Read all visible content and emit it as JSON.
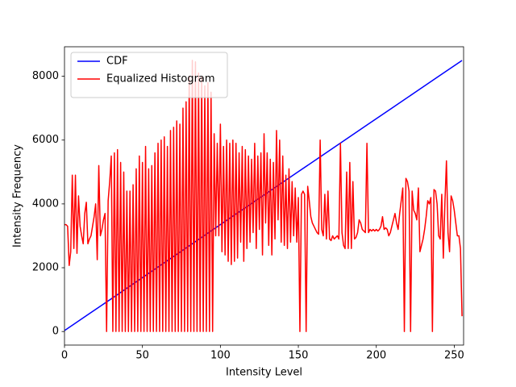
{
  "chart_data": {
    "type": "line",
    "xlabel": "Intensity Level",
    "ylabel": "Intensity Frequency",
    "xlim": [
      0,
      256
    ],
    "ylim": [
      -425,
      8925
    ],
    "xticks": [
      0,
      50,
      100,
      150,
      200,
      250
    ],
    "yticks": [
      0,
      2000,
      4000,
      6000,
      8000
    ],
    "legend": "upper-left",
    "grid": false,
    "x": [
      0,
      1,
      2,
      3,
      4,
      5,
      6,
      7,
      8,
      9,
      10,
      11,
      12,
      13,
      14,
      15,
      16,
      17,
      18,
      19,
      20,
      21,
      22,
      23,
      24,
      25,
      26,
      27,
      28,
      29,
      30,
      31,
      32,
      33,
      34,
      35,
      36,
      37,
      38,
      39,
      40,
      41,
      42,
      43,
      44,
      45,
      46,
      47,
      48,
      49,
      50,
      51,
      52,
      53,
      54,
      55,
      56,
      57,
      58,
      59,
      60,
      61,
      62,
      63,
      64,
      65,
      66,
      67,
      68,
      69,
      70,
      71,
      72,
      73,
      74,
      75,
      76,
      77,
      78,
      79,
      80,
      81,
      82,
      83,
      84,
      85,
      86,
      87,
      88,
      89,
      90,
      91,
      92,
      93,
      94,
      95,
      96,
      97,
      98,
      99,
      100,
      101,
      102,
      103,
      104,
      105,
      106,
      107,
      108,
      109,
      110,
      111,
      112,
      113,
      114,
      115,
      116,
      117,
      118,
      119,
      120,
      121,
      122,
      123,
      124,
      125,
      126,
      127,
      128,
      129,
      130,
      131,
      132,
      133,
      134,
      135,
      136,
      137,
      138,
      139,
      140,
      141,
      142,
      143,
      144,
      145,
      146,
      147,
      148,
      149,
      150,
      151,
      152,
      153,
      154,
      155,
      156,
      157,
      158,
      159,
      160,
      161,
      162,
      163,
      164,
      165,
      166,
      167,
      168,
      169,
      170,
      171,
      172,
      173,
      174,
      175,
      176,
      177,
      178,
      179,
      180,
      181,
      182,
      183,
      184,
      185,
      186,
      187,
      188,
      189,
      190,
      191,
      192,
      193,
      194,
      195,
      196,
      197,
      198,
      199,
      200,
      201,
      202,
      203,
      204,
      205,
      206,
      207,
      208,
      209,
      210,
      211,
      212,
      213,
      214,
      215,
      216,
      217,
      218,
      219,
      220,
      221,
      222,
      223,
      224,
      225,
      226,
      227,
      228,
      229,
      230,
      231,
      232,
      233,
      234,
      235,
      236,
      237,
      238,
      239,
      240,
      241,
      242,
      243,
      244,
      245,
      246,
      247,
      248,
      249,
      250,
      251,
      252,
      253,
      254,
      255
    ],
    "series": [
      {
        "name": "CDF",
        "color": "#0000ff",
        "x": [
          0,
          15,
          30,
          45,
          60,
          75,
          90,
          105,
          120,
          135,
          150,
          165,
          180,
          195,
          210,
          225,
          240,
          255
        ],
        "values": [
          30,
          528,
          1026,
          1524,
          2022,
          2520,
          3018,
          3516,
          4014,
          4512,
          5010,
          5508,
          6006,
          6504,
          7002,
          7500,
          7998,
          8496
        ]
      },
      {
        "name": "Equalized Histogram",
        "color": "#ff0000",
        "values": [
          3350,
          3350,
          3300,
          2070,
          2500,
          4900,
          2600,
          4900,
          2450,
          4250,
          3300,
          3000,
          2750,
          3700,
          4050,
          2750,
          2900,
          3000,
          3300,
          3600,
          4000,
          2250,
          5200,
          3000,
          3200,
          3500,
          3700,
          0,
          4100,
          4700,
          5500,
          0,
          5600,
          0,
          5700,
          0,
          5300,
          0,
          5000,
          0,
          4400,
          0,
          4400,
          0,
          4600,
          0,
          5100,
          0,
          5500,
          0,
          5300,
          0,
          5800,
          0,
          5100,
          0,
          5200,
          0,
          5600,
          0,
          5900,
          0,
          6000,
          0,
          6100,
          0,
          5800,
          0,
          6300,
          0,
          6400,
          0,
          6600,
          0,
          6500,
          0,
          7000,
          0,
          7200,
          0,
          8000,
          0,
          8500,
          0,
          8450,
          0,
          8100,
          0,
          8000,
          0,
          7700,
          0,
          7800,
          0,
          7500,
          0,
          6200,
          3000,
          5900,
          3000,
          6500,
          2500,
          5800,
          2400,
          6000,
          2200,
          5900,
          2100,
          6000,
          2200,
          5900,
          2300,
          5600,
          2800,
          5800,
          2200,
          5700,
          2600,
          5500,
          2800,
          5400,
          3100,
          5900,
          2600,
          5500,
          3200,
          5600,
          2400,
          6200,
          3400,
          5600,
          2700,
          5400,
          2400,
          5300,
          2900,
          6300,
          3500,
          6000,
          2800,
          5500,
          2700,
          4900,
          2600,
          5100,
          2800,
          4700,
          3000,
          4500,
          2800,
          4200,
          0,
          4300,
          4400,
          4300,
          0,
          4550,
          4100,
          3600,
          3400,
          3300,
          3200,
          3100,
          3050,
          6000,
          3200,
          3000,
          4300,
          2900,
          4400,
          2900,
          2850,
          3000,
          2900,
          2950,
          3000,
          2900,
          5900,
          3100,
          2700,
          2600,
          5000,
          2600,
          5300,
          2600,
          4700,
          2900,
          2950,
          3100,
          3500,
          3400,
          3200,
          3150,
          3100,
          5900,
          3100,
          3200,
          3150,
          3200,
          3150,
          3200,
          3150,
          3200,
          3300,
          3600,
          3200,
          3250,
          3200,
          3000,
          3100,
          3300,
          3500,
          3700,
          3400,
          3200,
          3700,
          4100,
          4500,
          0,
          4800,
          4700,
          4400,
          0,
          4400,
          3800,
          3700,
          3500,
          4500,
          2500,
          2700,
          2900,
          3200,
          3600,
          4100,
          4000,
          4200,
          0,
          4450,
          4400,
          4000,
          3000,
          2900,
          4300,
          2300,
          4000,
          5350,
          3100,
          2500,
          4250,
          4100,
          3800,
          3400,
          3000,
          3000,
          2600,
          480
        ]
      }
    ]
  }
}
